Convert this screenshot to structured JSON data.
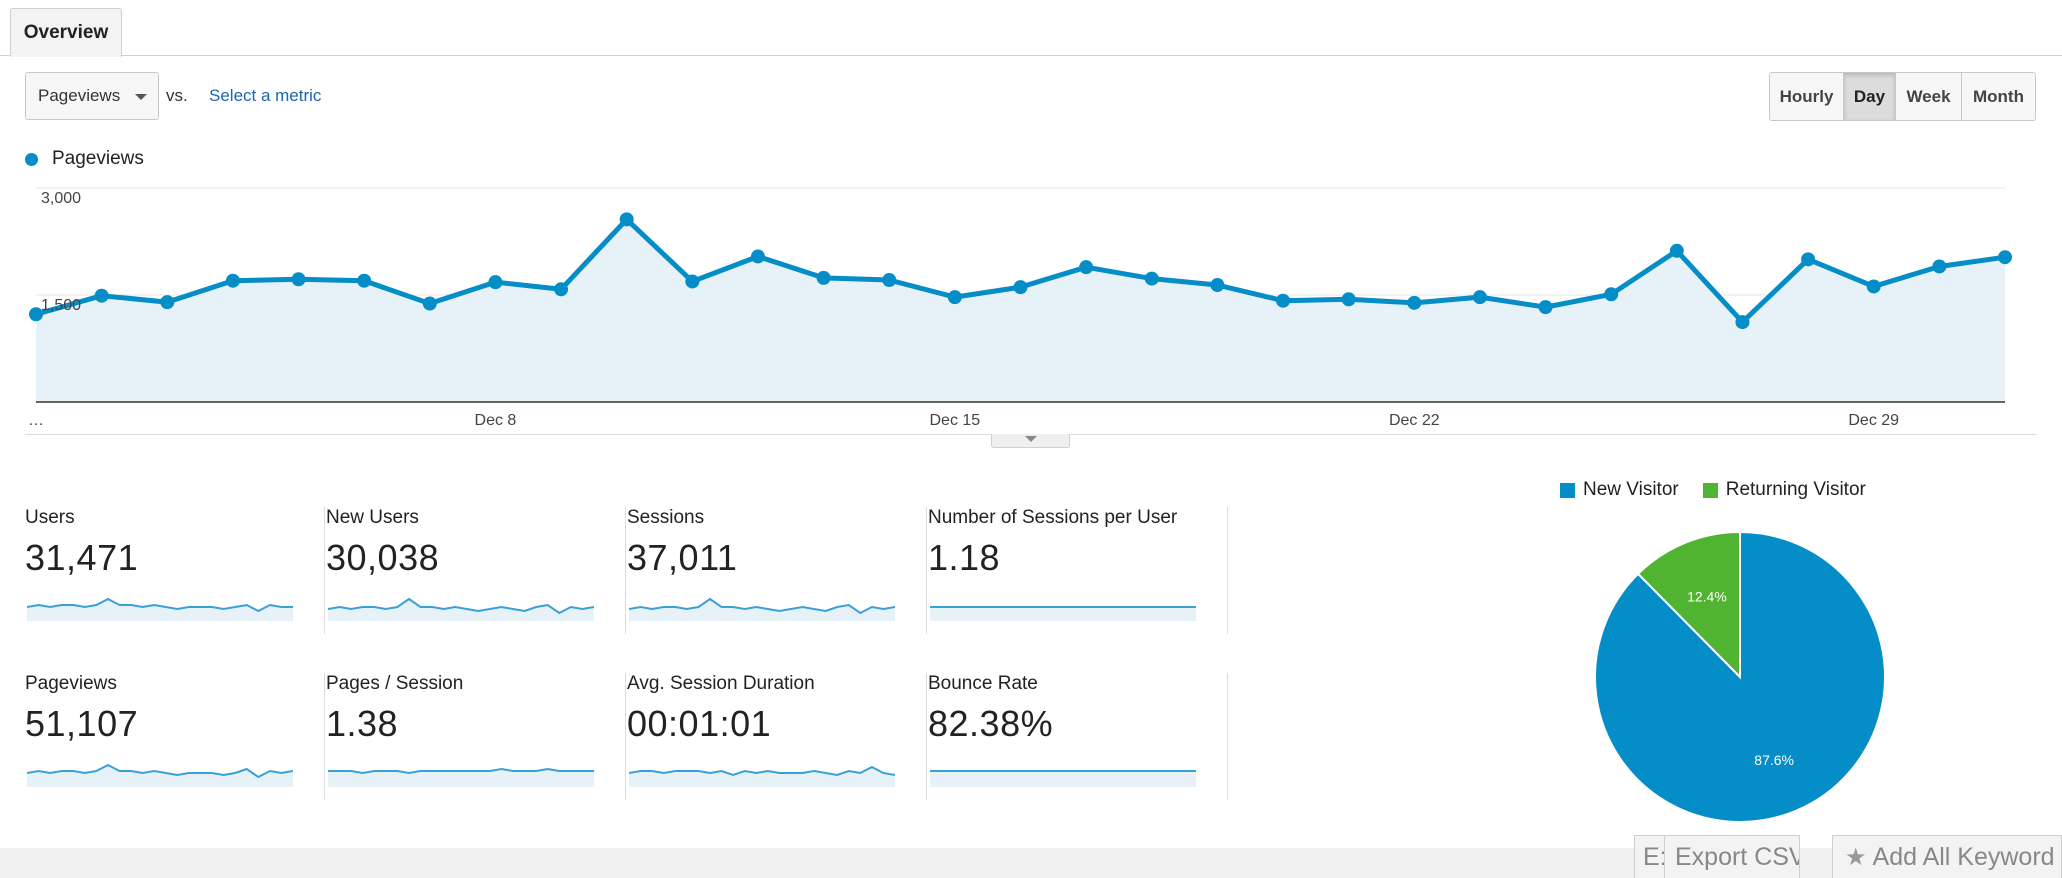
{
  "tabs": [
    {
      "label": "Overview"
    }
  ],
  "metric_selector": {
    "selected": "Pageviews",
    "vs_label": "vs.",
    "compare_link": "Select a metric"
  },
  "period_buttons": [
    {
      "label": "Hourly",
      "active": false
    },
    {
      "label": "Day",
      "active": true
    },
    {
      "label": "Week",
      "active": false
    },
    {
      "label": "Month",
      "active": false
    }
  ],
  "chart_data": {
    "type": "area",
    "series": [
      {
        "name": "Pageviews",
        "color": "#058dc7",
        "values": [
          1230,
          1490,
          1400,
          1700,
          1720,
          1700,
          1380,
          1680,
          1580,
          2560,
          1690,
          2040,
          1740,
          1710,
          1470,
          1610,
          1890,
          1730,
          1640,
          1420,
          1440,
          1390,
          1470,
          1330,
          1510,
          2120,
          1120,
          2000,
          1620,
          1900,
          2030
        ]
      }
    ],
    "x_tick_labels": [
      "…",
      "Dec 8",
      "Dec 15",
      "Dec 22",
      "Dec 29"
    ],
    "y_tick_labels": [
      "3,000",
      "1,500"
    ],
    "ylim": [
      0,
      3000
    ],
    "grid": true
  },
  "metrics": [
    {
      "label": "Users",
      "value": "31,471",
      "spark": [
        5,
        6,
        5,
        6,
        6,
        5,
        6,
        9,
        6,
        6,
        5,
        6,
        5,
        4,
        5,
        5,
        5,
        4,
        5,
        6,
        3,
        6,
        5,
        5
      ]
    },
    {
      "label": "New Users",
      "value": "30,038",
      "spark": [
        4,
        5,
        4,
        5,
        5,
        4,
        5,
        9,
        5,
        5,
        4,
        5,
        4,
        3,
        4,
        5,
        4,
        3,
        5,
        6,
        2,
        5,
        4,
        5
      ]
    },
    {
      "label": "Sessions",
      "value": "37,011",
      "spark": [
        4,
        5,
        4,
        5,
        5,
        4,
        5,
        9,
        5,
        5,
        4,
        5,
        4,
        3,
        4,
        5,
        4,
        3,
        5,
        6,
        2,
        5,
        4,
        5
      ]
    },
    {
      "label": "Number of Sessions per User",
      "value": "1.18",
      "spark": [
        5,
        5,
        5,
        5,
        5,
        5,
        5,
        5,
        5,
        5,
        5,
        5,
        5,
        5,
        5,
        5,
        5,
        5,
        5,
        5,
        5,
        5,
        5,
        5
      ]
    },
    {
      "label": "Pageviews",
      "value": "51,107",
      "spark": [
        5,
        6,
        5,
        6,
        6,
        5,
        6,
        9,
        6,
        6,
        5,
        6,
        5,
        4,
        5,
        5,
        5,
        4,
        5,
        7,
        3,
        6,
        5,
        6
      ]
    },
    {
      "label": "Pages / Session",
      "value": "1.38",
      "spark": [
        6,
        6,
        6,
        5,
        6,
        6,
        6,
        5,
        6,
        6,
        6,
        6,
        6,
        6,
        6,
        7,
        6,
        6,
        6,
        7,
        6,
        6,
        6,
        6
      ]
    },
    {
      "label": "Avg. Session Duration",
      "value": "00:01:01",
      "spark": [
        5,
        6,
        6,
        5,
        6,
        6,
        6,
        5,
        6,
        4,
        6,
        5,
        6,
        5,
        5,
        5,
        6,
        5,
        4,
        6,
        5,
        8,
        5,
        4
      ]
    },
    {
      "label": "Bounce Rate",
      "value": "82.38%",
      "spark": [
        6,
        6,
        6,
        6,
        6,
        6,
        6,
        6,
        6,
        6,
        6,
        6,
        6,
        6,
        6,
        6,
        6,
        6,
        6,
        6,
        6,
        6,
        6,
        6
      ]
    }
  ],
  "pie": {
    "legend": [
      {
        "label": "New Visitor",
        "color": "#058dc7"
      },
      {
        "label": "Returning Visitor",
        "color": "#50b432"
      }
    ],
    "slices": [
      {
        "label": "87.6%",
        "value": 87.6,
        "color": "#058dc7"
      },
      {
        "label": "12.4%",
        "value": 12.4,
        "color": "#50b432"
      }
    ]
  },
  "bottom_buttons": {
    "first": "E:",
    "export": "Export CSV",
    "add": "Add All Keyword"
  },
  "colors": {
    "accent": "#058dc7",
    "link": "#1a66b2",
    "area_fill": "#e6f2f8",
    "returning": "#50b432"
  }
}
